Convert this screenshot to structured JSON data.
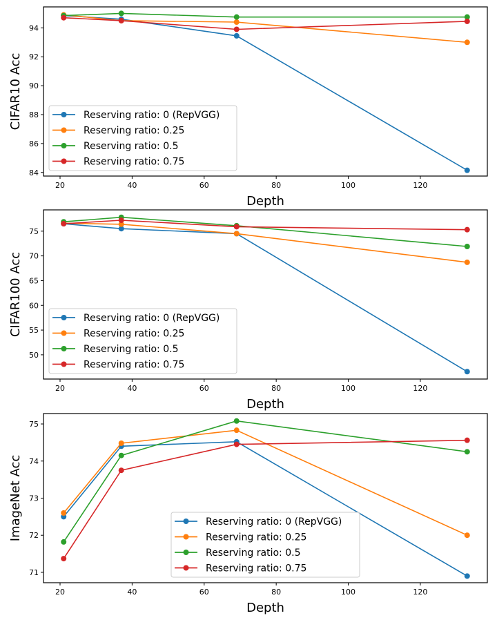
{
  "chart_data": [
    {
      "type": "line",
      "title": "",
      "xlabel": "Depth",
      "ylabel": "CIFAR10 Acc",
      "x": [
        21,
        37,
        69,
        133
      ],
      "xlim": [
        15.4,
        138.6
      ],
      "ylim": [
        83.75,
        95.45
      ],
      "xticks": [
        20,
        40,
        60,
        80,
        100,
        120
      ],
      "yticks": [
        84,
        86,
        88,
        90,
        92,
        94
      ],
      "grid": false,
      "legend_position": "lower-left",
      "series": [
        {
          "name": "Reserving ratio: 0 (RepVGG)",
          "color": "#1f77b4",
          "values": [
            94.85,
            94.6,
            93.45,
            84.15
          ]
        },
        {
          "name": "Reserving ratio: 0.25",
          "color": "#ff7f0e",
          "values": [
            94.9,
            94.5,
            94.4,
            93.0
          ]
        },
        {
          "name": "Reserving ratio: 0.5",
          "color": "#2ca02c",
          "values": [
            94.85,
            95.0,
            94.75,
            94.75
          ]
        },
        {
          "name": "Reserving ratio: 0.75",
          "color": "#d62728",
          "values": [
            94.7,
            94.5,
            93.9,
            94.45
          ]
        }
      ]
    },
    {
      "type": "line",
      "title": "",
      "xlabel": "Depth",
      "ylabel": "CIFAR100 Acc",
      "x": [
        21,
        37,
        69,
        133
      ],
      "xlim": [
        15.4,
        138.6
      ],
      "ylim": [
        45.1,
        79.3
      ],
      "xticks": [
        20,
        40,
        60,
        80,
        100,
        120
      ],
      "yticks": [
        50,
        55,
        60,
        65,
        70,
        75
      ],
      "grid": false,
      "legend_position": "lower-left",
      "series": [
        {
          "name": "Reserving ratio: 0 (RepVGG)",
          "color": "#1f77b4",
          "values": [
            76.5,
            75.5,
            74.5,
            46.6
          ]
        },
        {
          "name": "Reserving ratio: 0.25",
          "color": "#ff7f0e",
          "values": [
            76.6,
            76.4,
            74.5,
            68.7
          ]
        },
        {
          "name": "Reserving ratio: 0.5",
          "color": "#2ca02c",
          "values": [
            76.9,
            77.8,
            76.1,
            71.9
          ]
        },
        {
          "name": "Reserving ratio: 0.75",
          "color": "#d62728",
          "values": [
            76.5,
            77.2,
            75.9,
            75.3
          ]
        }
      ]
    },
    {
      "type": "line",
      "title": "",
      "xlabel": "Depth",
      "ylabel": "ImageNet Acc",
      "x": [
        21,
        37,
        69,
        133
      ],
      "xlim": [
        15.4,
        138.6
      ],
      "ylim": [
        70.72,
        75.28
      ],
      "xticks": [
        20,
        40,
        60,
        80,
        100,
        120
      ],
      "yticks": [
        71,
        72,
        73,
        74,
        75
      ],
      "grid": false,
      "legend_position": "lower-center",
      "series": [
        {
          "name": "Reserving ratio: 0 (RepVGG)",
          "color": "#1f77b4",
          "values": [
            72.5,
            74.4,
            74.52,
            70.9
          ]
        },
        {
          "name": "Reserving ratio: 0.25",
          "color": "#ff7f0e",
          "values": [
            72.6,
            74.48,
            74.83,
            72.0
          ]
        },
        {
          "name": "Reserving ratio: 0.5",
          "color": "#2ca02c",
          "values": [
            71.82,
            74.15,
            75.08,
            74.25
          ]
        },
        {
          "name": "Reserving ratio: 0.75",
          "color": "#d62728",
          "values": [
            71.37,
            73.75,
            74.45,
            74.56
          ]
        }
      ]
    }
  ]
}
